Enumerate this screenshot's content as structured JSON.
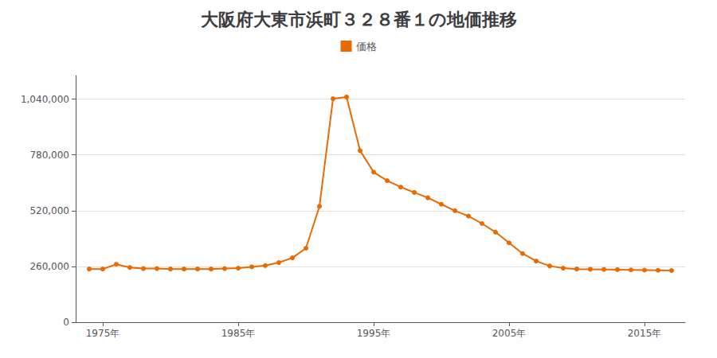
{
  "chart_data": {
    "type": "line",
    "title": "大阪府大東市浜町３２８番１の地価推移",
    "x": [
      1974,
      1975,
      1976,
      1977,
      1978,
      1979,
      1980,
      1981,
      1982,
      1983,
      1984,
      1985,
      1986,
      1987,
      1988,
      1989,
      1990,
      1991,
      1992,
      1993,
      1994,
      1995,
      1996,
      1997,
      1998,
      1999,
      2000,
      2001,
      2002,
      2003,
      2004,
      2005,
      2006,
      2007,
      2008,
      2009,
      2010,
      2011,
      2012,
      2013,
      2014,
      2015,
      2016,
      2017
    ],
    "series": [
      {
        "name": "価格",
        "color": "#e86a00",
        "marker": "circle",
        "values": [
          248000,
          248000,
          270000,
          255000,
          250000,
          250000,
          248000,
          248000,
          248000,
          248000,
          250000,
          252000,
          258000,
          264000,
          278000,
          300000,
          345000,
          540000,
          1042000,
          1050000,
          800000,
          700000,
          660000,
          630000,
          605000,
          580000,
          550000,
          520000,
          495000,
          460000,
          420000,
          370000,
          320000,
          285000,
          262000,
          252000,
          248000,
          247000,
          246000,
          245000,
          244000,
          243000,
          242000,
          241000
        ]
      }
    ],
    "xlim": [
      1973,
      2018
    ],
    "xticks": [
      {
        "value": 1975,
        "label": "1975年"
      },
      {
        "value": 1985,
        "label": "1985年"
      },
      {
        "value": 1995,
        "label": "1995年"
      },
      {
        "value": 2005,
        "label": "2005年"
      },
      {
        "value": 2015,
        "label": "2015年"
      }
    ],
    "ylim": [
      0,
      1150000
    ],
    "yticks": [
      0,
      {
        "value": 260000,
        "label": "260,000"
      },
      {
        "value": 520000,
        "label": "520,000"
      },
      {
        "value": 780000,
        "label": "780,000"
      },
      {
        "value": 1040000,
        "label": "1,040,000"
      }
    ],
    "grid": true,
    "legend": "top"
  }
}
